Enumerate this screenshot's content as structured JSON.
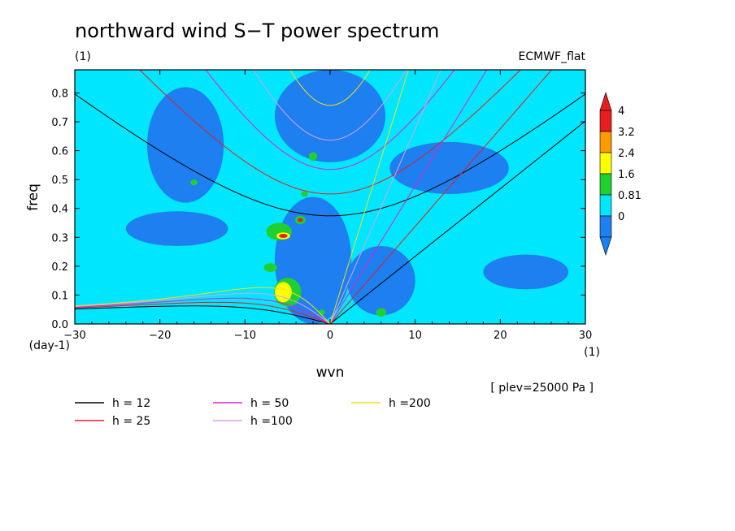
{
  "chart_data": {
    "type": "heatmap",
    "title": "northward wind S−T power spectrum",
    "subtitle": "(1)",
    "source_label": "ECMWF_flat",
    "xlabel": "wvn",
    "ylabel": "freq",
    "x_unit": "(1)",
    "y_unit": "(day-1)",
    "level_note": "[ plev=25000 Pa ]",
    "xlim": [
      -30,
      30
    ],
    "ylim": [
      0,
      0.88
    ],
    "x_ticks": [
      "−30",
      "−20",
      "−10",
      "0",
      "10",
      "20",
      "30"
    ],
    "x_tick_values": [
      -30,
      -20,
      -10,
      0,
      10,
      20,
      30
    ],
    "y_ticks": [
      "0.0",
      "0.1",
      "0.2",
      "0.3",
      "0.4",
      "0.5",
      "0.6",
      "0.7",
      "0.8"
    ],
    "y_tick_values": [
      0,
      0.1,
      0.2,
      0.3,
      0.4,
      0.5,
      0.6,
      0.7,
      0.8
    ],
    "colorbar": {
      "labels": [
        "0",
        "0.81",
        "1.6",
        "2.4",
        "3.2",
        "4"
      ],
      "colors": [
        "#1e7ff0",
        "#00e6ff",
        "#20d030",
        "#ffff00",
        "#ff9a00",
        "#e61e1e"
      ]
    },
    "background_color": "#00e6ff",
    "features": [
      {
        "kind": "band",
        "x": 0,
        "y": 0.72,
        "rx": 6.5,
        "ry": 0.16,
        "level": 0
      },
      {
        "kind": "band",
        "x": -2,
        "y": 0.22,
        "rx": 4.5,
        "ry": 0.22,
        "level": 0
      },
      {
        "kind": "band",
        "x": -17,
        "y": 0.62,
        "rx": 4.5,
        "ry": 0.2,
        "level": 0
      },
      {
        "kind": "band",
        "x": 14,
        "y": 0.54,
        "rx": 7,
        "ry": 0.09,
        "level": 0
      },
      {
        "kind": "band",
        "x": 6,
        "y": 0.15,
        "rx": 4,
        "ry": 0.12,
        "level": 0
      },
      {
        "kind": "band",
        "x": -18,
        "y": 0.33,
        "rx": 6,
        "ry": 0.06,
        "level": 0
      },
      {
        "kind": "band",
        "x": 23,
        "y": 0.18,
        "rx": 5,
        "ry": 0.06,
        "level": 0
      },
      {
        "kind": "patch",
        "x": -6,
        "y": 0.32,
        "rx": 1.5,
        "ry": 0.03,
        "level": 2
      },
      {
        "kind": "patch",
        "x": -5.5,
        "y": 0.305,
        "rx": 0.8,
        "ry": 0.012,
        "level": 3
      },
      {
        "kind": "patch",
        "x": -5.5,
        "y": 0.305,
        "rx": 0.5,
        "ry": 0.007,
        "level": 5
      },
      {
        "kind": "patch",
        "x": -7,
        "y": 0.195,
        "rx": 0.8,
        "ry": 0.015,
        "level": 2
      },
      {
        "kind": "patch",
        "x": -5,
        "y": 0.11,
        "rx": 1.6,
        "ry": 0.05,
        "level": 2
      },
      {
        "kind": "patch",
        "x": -5.5,
        "y": 0.11,
        "rx": 1,
        "ry": 0.035,
        "level": 3
      },
      {
        "kind": "patch",
        "x": -3.5,
        "y": 0.36,
        "rx": 0.6,
        "ry": 0.015,
        "level": 2
      },
      {
        "kind": "patch",
        "x": -3.5,
        "y": 0.36,
        "rx": 0.3,
        "ry": 0.007,
        "level": 5
      },
      {
        "kind": "patch",
        "x": -2,
        "y": 0.58,
        "rx": 0.5,
        "ry": 0.015,
        "level": 2
      },
      {
        "kind": "patch",
        "x": -3,
        "y": 0.45,
        "rx": 0.4,
        "ry": 0.01,
        "level": 2
      },
      {
        "kind": "patch",
        "x": 6,
        "y": 0.04,
        "rx": 0.6,
        "ry": 0.015,
        "level": 2
      },
      {
        "kind": "patch",
        "x": -1,
        "y": 0.04,
        "rx": 0.4,
        "ry": 0.01,
        "level": 2
      },
      {
        "kind": "patch",
        "x": -16,
        "y": 0.49,
        "rx": 0.4,
        "ry": 0.01,
        "level": 2
      }
    ],
    "series": [
      {
        "name": "h = 12",
        "h": 12,
        "color": "#000000"
      },
      {
        "name": "h = 25",
        "h": 25,
        "color": "#e02020"
      },
      {
        "name": "h = 50",
        "h": 50,
        "color": "#e020d0"
      },
      {
        "name": "h =100",
        "h": 100,
        "color": "#d8a0e8"
      },
      {
        "name": "h =200",
        "h": 200,
        "color": "#f0e020"
      }
    ],
    "legend_position": "below"
  }
}
